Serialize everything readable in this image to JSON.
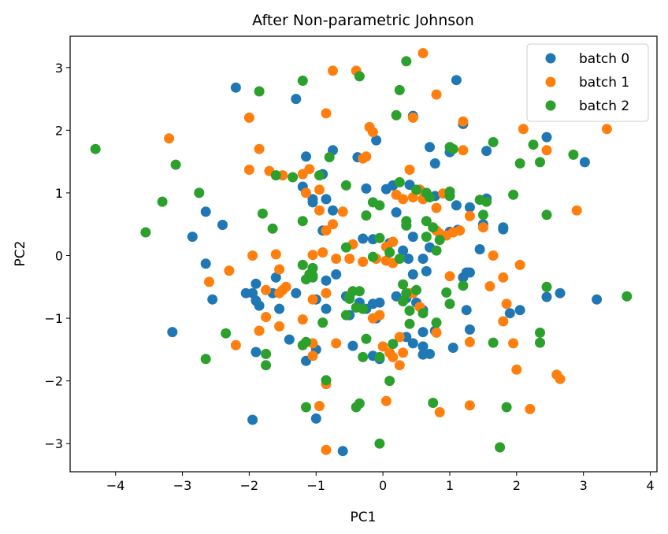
{
  "chart_data": {
    "type": "scatter",
    "title": "After Non-parametric Johnson",
    "xlabel": "PC1",
    "ylabel": "PC2",
    "xlim": [
      -4.68,
      4.1
    ],
    "ylim": [
      -3.45,
      3.5
    ],
    "xticks": [
      -4,
      -3,
      -2,
      -1,
      0,
      1,
      2,
      3,
      4
    ],
    "yticks": [
      -3,
      -2,
      -1,
      0,
      1,
      2,
      3
    ],
    "grid": false,
    "legend_position": "top-right",
    "series": [
      {
        "name": "batch 0",
        "color": "#1f77b4",
        "points": [
          [
            -2.2,
            2.68
          ],
          [
            -1.3,
            2.5
          ],
          [
            1.1,
            2.8
          ],
          [
            -1.15,
            1.58
          ],
          [
            -0.75,
            1.68
          ],
          [
            -0.38,
            1.57
          ],
          [
            -0.1,
            1.84
          ],
          [
            0.45,
            2.23
          ],
          [
            1.0,
            1.65
          ],
          [
            1.2,
            2.1
          ],
          [
            0.7,
            1.73
          ],
          [
            0.78,
            1.47
          ],
          [
            1.55,
            1.67
          ],
          [
            2.45,
            1.89
          ],
          [
            3.02,
            1.49
          ],
          [
            -2.65,
            0.7
          ],
          [
            -2.85,
            0.3
          ],
          [
            -2.4,
            0.49
          ],
          [
            -2.65,
            -0.13
          ],
          [
            -1.2,
            1.1
          ],
          [
            -1.05,
            0.9
          ],
          [
            -0.85,
            0.9
          ],
          [
            -0.9,
            1.3
          ],
          [
            -1.05,
            0.85
          ],
          [
            -0.75,
            0.72
          ],
          [
            -0.9,
            0.4
          ],
          [
            -0.25,
            1.07
          ],
          [
            0.05,
            1.06
          ],
          [
            0.15,
            1.12
          ],
          [
            0.4,
            1.13
          ],
          [
            0.55,
            1.05
          ],
          [
            0.78,
            0.95
          ],
          [
            1.1,
            0.8
          ],
          [
            1.3,
            0.77
          ],
          [
            1.55,
            0.91
          ],
          [
            1.0,
            0.38
          ],
          [
            1.12,
            0.41
          ],
          [
            -0.3,
            0.27
          ],
          [
            -0.15,
            0.26
          ],
          [
            0.1,
            0.2
          ],
          [
            0.2,
            0.69
          ],
          [
            0.35,
            0.48
          ],
          [
            0.45,
            0.3
          ],
          [
            0.3,
            0.08
          ],
          [
            0.38,
            -0.05
          ],
          [
            0.05,
            -0.08
          ],
          [
            0.6,
            -0.05
          ],
          [
            0.7,
            0.13
          ],
          [
            0.65,
            -0.25
          ],
          [
            0.45,
            -0.3
          ],
          [
            1.45,
            0.1
          ],
          [
            1.5,
            0.5
          ],
          [
            1.8,
            0.42
          ],
          [
            1.8,
            0.45
          ],
          [
            1.25,
            -0.27
          ],
          [
            1.3,
            -0.27
          ],
          [
            1.2,
            -0.35
          ],
          [
            -0.7,
            -0.3
          ],
          [
            -0.85,
            -0.4
          ],
          [
            -1.6,
            -0.35
          ],
          [
            -1.95,
            -0.6
          ],
          [
            -2.55,
            -0.7
          ],
          [
            -2.05,
            -0.6
          ],
          [
            -1.9,
            -0.45
          ],
          [
            -1.65,
            -0.6
          ],
          [
            -1.3,
            -0.6
          ],
          [
            -1.9,
            -0.72
          ],
          [
            -1.85,
            -0.8
          ],
          [
            -1.55,
            -0.85
          ],
          [
            -1.0,
            -0.7
          ],
          [
            -0.85,
            -0.85
          ],
          [
            -0.55,
            -0.65
          ],
          [
            -0.5,
            -0.95
          ],
          [
            -0.35,
            -0.75
          ],
          [
            -0.15,
            -0.77
          ],
          [
            -0.05,
            -0.75
          ],
          [
            -0.25,
            -0.85
          ],
          [
            -0.1,
            -1.0
          ],
          [
            0.2,
            -0.65
          ],
          [
            0.35,
            -0.68
          ],
          [
            0.5,
            -0.75
          ],
          [
            0.6,
            -0.87
          ],
          [
            0.35,
            -1.3
          ],
          [
            0.45,
            -1.4
          ],
          [
            0.6,
            -1.45
          ],
          [
            0.6,
            -1.58
          ],
          [
            0.7,
            -1.57
          ],
          [
            0.78,
            -1.2
          ],
          [
            0.6,
            -1.22
          ],
          [
            1.05,
            -1.47
          ],
          [
            1.25,
            -0.87
          ],
          [
            1.3,
            -1.18
          ],
          [
            1.9,
            -0.92
          ],
          [
            2.05,
            -0.87
          ],
          [
            2.45,
            -0.66
          ],
          [
            2.65,
            -0.6
          ],
          [
            3.2,
            -0.7
          ],
          [
            -3.15,
            -1.22
          ],
          [
            -1.4,
            -1.34
          ],
          [
            -1.9,
            -1.54
          ],
          [
            -1.15,
            -1.68
          ],
          [
            -1.0,
            -1.5
          ],
          [
            -0.45,
            -1.44
          ],
          [
            -0.15,
            -1.6
          ],
          [
            -0.05,
            -1.65
          ],
          [
            -1.95,
            -2.62
          ],
          [
            -1.0,
            -2.6
          ],
          [
            -0.6,
            -3.12
          ]
        ]
      },
      {
        "name": "batch 1",
        "color": "#ff7f0e",
        "points": [
          [
            -0.4,
            2.95
          ],
          [
            -0.75,
            2.95
          ],
          [
            0.6,
            3.23
          ],
          [
            -0.85,
            2.27
          ],
          [
            -2.0,
            2.2
          ],
          [
            -0.15,
            1.97
          ],
          [
            -0.2,
            2.05
          ],
          [
            0.45,
            2.2
          ],
          [
            0.8,
            2.57
          ],
          [
            1.2,
            2.14
          ],
          [
            -3.2,
            1.87
          ],
          [
            -1.85,
            1.7
          ],
          [
            -2.0,
            1.37
          ],
          [
            -1.7,
            1.35
          ],
          [
            -1.5,
            1.28
          ],
          [
            -1.2,
            1.3
          ],
          [
            -1.1,
            1.38
          ],
          [
            -0.95,
            1.05
          ],
          [
            -1.15,
            1.0
          ],
          [
            -0.3,
            1.55
          ],
          [
            -0.25,
            1.58
          ],
          [
            0.4,
            1.37
          ],
          [
            0.55,
            1.05
          ],
          [
            0.45,
            0.93
          ],
          [
            0.6,
            0.9
          ],
          [
            0.8,
            0.76
          ],
          [
            0.9,
            0.99
          ],
          [
            1.2,
            1.68
          ],
          [
            2.1,
            2.02
          ],
          [
            2.45,
            1.68
          ],
          [
            3.35,
            2.02
          ],
          [
            2.9,
            0.72
          ],
          [
            1.3,
            0.63
          ],
          [
            1.15,
            0.4
          ],
          [
            1.05,
            0.37
          ],
          [
            0.95,
            0.32
          ],
          [
            0.8,
            0.4
          ],
          [
            0.2,
            0.97
          ],
          [
            0.3,
            0.9
          ],
          [
            -0.95,
            0.72
          ],
          [
            -0.6,
            0.7
          ],
          [
            -0.9,
            0.05
          ],
          [
            -1.05,
            0.01
          ],
          [
            -0.7,
            -0.05
          ],
          [
            -0.5,
            -0.05
          ],
          [
            -0.3,
            -0.1
          ],
          [
            -0.1,
            -0.05
          ],
          [
            0.05,
            0.14
          ],
          [
            0.15,
            0.22
          ],
          [
            0.05,
            -0.08
          ],
          [
            0.15,
            -0.12
          ],
          [
            -1.6,
            0.02
          ],
          [
            -1.55,
            -0.22
          ],
          [
            -1.5,
            -0.55
          ],
          [
            -1.55,
            -0.6
          ],
          [
            -1.45,
            -0.5
          ],
          [
            -1.75,
            -0.55
          ],
          [
            -1.95,
            0.0
          ],
          [
            -2.3,
            -0.24
          ],
          [
            -2.6,
            -0.42
          ],
          [
            -0.85,
            0.4
          ],
          [
            -0.75,
            0.5
          ],
          [
            -0.45,
            0.18
          ],
          [
            0.85,
            0.35
          ],
          [
            1.0,
            -0.33
          ],
          [
            1.5,
            0.45
          ],
          [
            1.65,
            0.0
          ],
          [
            1.8,
            -0.35
          ],
          [
            2.05,
            -0.15
          ],
          [
            1.6,
            -0.49
          ],
          [
            1.85,
            -0.77
          ],
          [
            1.8,
            -1.05
          ],
          [
            1.95,
            -1.4
          ],
          [
            2.0,
            -1.82
          ],
          [
            2.2,
            -2.45
          ],
          [
            2.6,
            -1.9
          ],
          [
            2.65,
            -1.97
          ],
          [
            1.3,
            -1.38
          ],
          [
            1.3,
            -2.39
          ],
          [
            0.85,
            -2.5
          ],
          [
            0.25,
            -1.3
          ],
          [
            0.3,
            -1.55
          ],
          [
            0.15,
            -1.62
          ],
          [
            0.0,
            -1.45
          ],
          [
            0.1,
            -1.55
          ],
          [
            0.25,
            -1.75
          ],
          [
            0.45,
            -0.6
          ],
          [
            0.4,
            -0.6
          ],
          [
            0.55,
            -0.82
          ],
          [
            0.8,
            -1.23
          ],
          [
            -0.05,
            -0.95
          ],
          [
            -0.15,
            -1.0
          ],
          [
            -1.05,
            -0.7
          ],
          [
            -0.85,
            -0.6
          ],
          [
            -1.2,
            -1.02
          ],
          [
            -1.55,
            -1.13
          ],
          [
            -1.85,
            -1.2
          ],
          [
            -1.75,
            -0.98
          ],
          [
            -2.2,
            -1.43
          ],
          [
            -1.05,
            -1.4
          ],
          [
            -1.05,
            -1.6
          ],
          [
            -0.7,
            -1.4
          ],
          [
            -0.95,
            -2.4
          ],
          [
            -0.85,
            -3.1
          ],
          [
            -0.85,
            -2.05
          ],
          [
            0.05,
            -2.32
          ]
        ]
      },
      {
        "name": "batch 2",
        "color": "#2ca02c",
        "points": [
          [
            -4.3,
            1.7
          ],
          [
            -3.55,
            0.37
          ],
          [
            -3.1,
            1.45
          ],
          [
            -3.3,
            0.86
          ],
          [
            -2.75,
            1.0
          ],
          [
            -1.85,
            2.62
          ],
          [
            -1.2,
            2.79
          ],
          [
            -0.35,
            2.86
          ],
          [
            0.35,
            3.1
          ],
          [
            0.25,
            2.64
          ],
          [
            0.2,
            2.24
          ],
          [
            -1.6,
            1.28
          ],
          [
            -1.35,
            1.25
          ],
          [
            -0.8,
            1.57
          ],
          [
            -0.95,
            1.28
          ],
          [
            -1.8,
            0.67
          ],
          [
            -1.65,
            0.43
          ],
          [
            -1.2,
            0.55
          ],
          [
            -0.55,
            1.12
          ],
          [
            -0.15,
            0.85
          ],
          [
            -0.05,
            0.8
          ],
          [
            -0.25,
            0.64
          ],
          [
            0.25,
            1.17
          ],
          [
            0.5,
            1.05
          ],
          [
            0.65,
            1.0
          ],
          [
            0.7,
            0.93
          ],
          [
            1.0,
            1.73
          ],
          [
            1.05,
            1.7
          ],
          [
            1.65,
            1.81
          ],
          [
            2.05,
            1.47
          ],
          [
            2.25,
            1.77
          ],
          [
            2.35,
            1.49
          ],
          [
            2.85,
            1.61
          ],
          [
            1.0,
            1.02
          ],
          [
            1.0,
            0.95
          ],
          [
            1.5,
            0.65
          ],
          [
            1.45,
            0.89
          ],
          [
            1.55,
            0.86
          ],
          [
            1.95,
            0.97
          ],
          [
            2.45,
            0.65
          ],
          [
            0.35,
            0.55
          ],
          [
            0.35,
            0.48
          ],
          [
            0.65,
            0.55
          ],
          [
            0.75,
            0.45
          ],
          [
            0.85,
            0.25
          ],
          [
            0.65,
            0.3
          ],
          [
            0.8,
            0.08
          ],
          [
            0.1,
            0.05
          ],
          [
            -0.15,
            -0.02
          ],
          [
            -0.55,
            0.13
          ],
          [
            -0.05,
            0.28
          ],
          [
            0.25,
            -0.05
          ],
          [
            -1.2,
            -0.15
          ],
          [
            -1.05,
            -0.2
          ],
          [
            -1.05,
            -0.32
          ],
          [
            -1.05,
            -0.35
          ],
          [
            -1.1,
            -0.3
          ],
          [
            -1.15,
            -0.38
          ],
          [
            -0.35,
            -0.57
          ],
          [
            -0.5,
            -0.65
          ],
          [
            -0.5,
            -0.69
          ],
          [
            -0.4,
            -0.83
          ],
          [
            -0.3,
            -0.85
          ],
          [
            0.3,
            -0.46
          ],
          [
            0.35,
            -0.6
          ],
          [
            0.5,
            -0.55
          ],
          [
            0.3,
            -0.73
          ],
          [
            0.4,
            -0.88
          ],
          [
            0.6,
            -0.92
          ],
          [
            0.95,
            -0.59
          ],
          [
            1.0,
            -0.77
          ],
          [
            1.2,
            -0.48
          ],
          [
            2.45,
            -0.5
          ],
          [
            3.65,
            -0.65
          ],
          [
            2.35,
            -1.23
          ],
          [
            2.35,
            -1.39
          ],
          [
            1.65,
            -1.39
          ],
          [
            0.8,
            -1.07
          ],
          [
            0.4,
            -1.09
          ],
          [
            0.15,
            -1.41
          ],
          [
            -0.25,
            -1.33
          ],
          [
            -0.3,
            -1.62
          ],
          [
            -0.05,
            -1.62
          ],
          [
            0.1,
            -2.0
          ],
          [
            -0.35,
            -2.36
          ],
          [
            -0.4,
            -2.42
          ],
          [
            -0.05,
            -3.0
          ],
          [
            0.75,
            -2.35
          ],
          [
            1.75,
            -3.06
          ],
          [
            1.85,
            -2.42
          ],
          [
            -0.55,
            -0.95
          ],
          [
            -0.9,
            -1.07
          ],
          [
            -1.2,
            -1.43
          ],
          [
            -1.15,
            -1.38
          ],
          [
            -1.75,
            -1.57
          ],
          [
            -1.75,
            -1.75
          ],
          [
            -2.35,
            -1.24
          ],
          [
            -2.65,
            -1.65
          ],
          [
            -1.15,
            -2.42
          ],
          [
            -0.85,
            -1.99
          ],
          [
            -0.45,
            -0.57
          ]
        ]
      }
    ]
  }
}
